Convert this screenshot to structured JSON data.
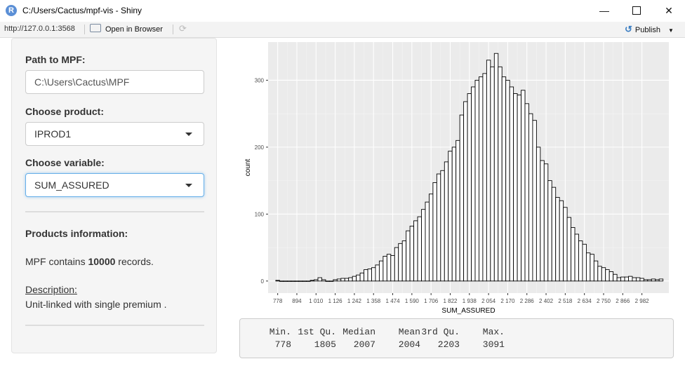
{
  "window": {
    "title": "C:/Users/Cactus/mpf-vis - Shiny",
    "icon": "r-logo-icon"
  },
  "toolbar": {
    "url": "http://127.0.0.1:3568",
    "open_browser": "Open in Browser",
    "publish": "Publish"
  },
  "sidebar": {
    "path_label": "Path to MPF:",
    "path_value": "C:\\Users\\Cactus\\MPF",
    "product_label": "Choose product:",
    "product_value": "IPROD1",
    "variable_label": "Choose variable:",
    "variable_value": "SUM_ASSURED",
    "info_heading": "Products information:",
    "records_prefix": "MPF contains ",
    "records_count": "10000",
    "records_suffix": " records.",
    "description_label": "Description:",
    "description_text": "Unit-linked with single premium ."
  },
  "chart_data": {
    "type": "bar",
    "subtype": "histogram",
    "xlabel": "SUM_ASSURED",
    "ylabel": "count",
    "xlim": [
      720,
      3145
    ],
    "ylim": [
      -18,
      357
    ],
    "yticks": [
      0,
      100,
      200,
      300
    ],
    "ytick_labels": [
      "0",
      "100",
      "200",
      "300"
    ],
    "xticks": [
      778,
      894,
      1010,
      1126,
      1242,
      1358,
      1474,
      1590,
      1706,
      1822,
      1938,
      2054,
      2170,
      2286,
      2402,
      2518,
      2634,
      2750,
      2866,
      2982
    ],
    "xtick_labels": [
      "778",
      "894",
      "1 010",
      "1 126",
      "1 242",
      "1 358",
      "1 474",
      "1 590",
      "1 706",
      "1 822",
      "1 938",
      "2 054",
      "2 170",
      "2 286",
      "2 402",
      "2 518",
      "2 634",
      "2 750",
      "2 866",
      "2 982"
    ],
    "bin_start": 778,
    "bin_width": 23.2,
    "values": [
      1,
      0,
      0,
      0,
      0,
      0,
      0,
      0,
      0,
      1,
      2,
      5,
      2,
      0,
      0,
      2,
      3,
      4,
      4,
      5,
      7,
      9,
      12,
      17,
      18,
      20,
      24,
      30,
      37,
      40,
      38,
      50,
      56,
      60,
      75,
      82,
      90,
      96,
      107,
      118,
      130,
      147,
      160,
      165,
      178,
      194,
      200,
      210,
      248,
      268,
      280,
      290,
      300,
      305,
      310,
      330,
      320,
      340,
      320,
      305,
      300,
      290,
      280,
      278,
      285,
      265,
      250,
      240,
      200,
      180,
      175,
      150,
      140,
      125,
      120,
      110,
      95,
      80,
      70,
      60,
      55,
      42,
      40,
      30,
      22,
      20,
      17,
      14,
      10,
      5,
      6,
      6,
      7,
      5,
      5,
      4,
      2,
      2,
      3,
      2,
      3
    ]
  },
  "summary": {
    "headers": [
      "Min.",
      "1st Qu.",
      "Median",
      "Mean",
      "3rd Qu.",
      "Max."
    ],
    "values": [
      "778",
      "1805",
      "2007",
      "2004",
      "2203",
      "3091"
    ]
  }
}
